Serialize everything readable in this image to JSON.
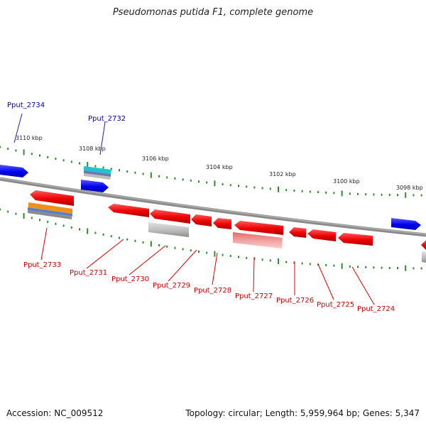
{
  "title": "Pseudomonas putida F1, complete genome",
  "footer": {
    "accession": "Accession: NC_009512",
    "summary": "Topology: circular; Length: 5,959,964 bp; Genes: 5,347"
  },
  "colors": {
    "backbone": "#808080",
    "tick": "#2e8b2e",
    "forward_gene": "#0000ee",
    "reverse_gene": "#ee0000",
    "forward_label": "#0000aa",
    "reverse_label": "#cc0000"
  },
  "kbp_labels": [
    "3110 kbp",
    "3108 kbp",
    "3106 kbp",
    "3104 kbp",
    "3102 kbp",
    "3100 kbp",
    "3098 kbp"
  ],
  "gene_labels": {
    "forward": [
      "Pput_2734",
      "Pput_2732"
    ],
    "reverse": [
      "Pput_2733",
      "Pput_2731",
      "Pput_2730",
      "Pput_2729",
      "Pput_2728",
      "Pput_2727",
      "Pput_2726",
      "Pput_2725",
      "Pput_2724"
    ]
  }
}
